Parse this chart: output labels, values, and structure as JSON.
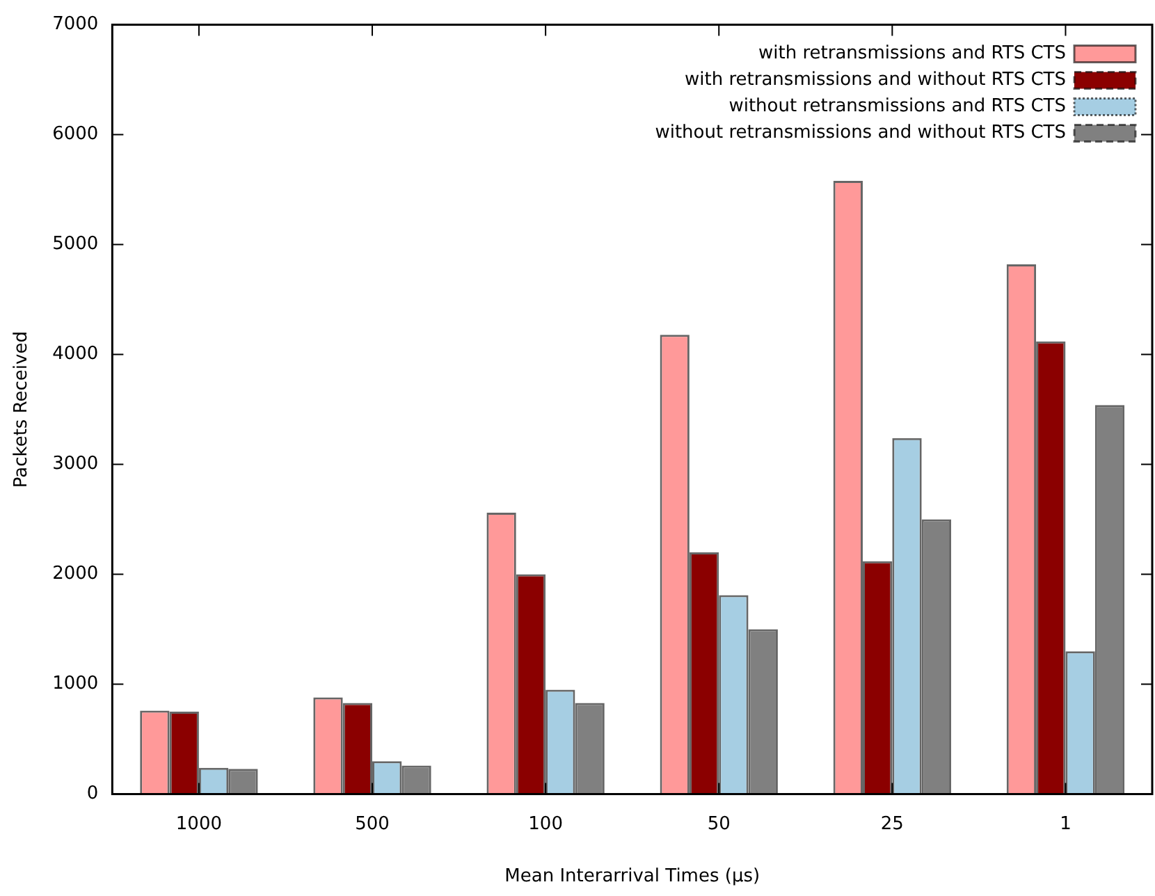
{
  "chart_data": {
    "type": "bar",
    "xlabel": "Mean Interarrival Times (µs)",
    "ylabel": "Packets Received",
    "categories": [
      "1000",
      "500",
      "100",
      "50",
      "25",
      "1"
    ],
    "series": [
      {
        "name": "with retransmissions and RTS CTS",
        "color": "#ff9999",
        "line_style": "solid",
        "values": [
          760,
          880,
          2560,
          4180,
          5580,
          4820
        ]
      },
      {
        "name": "with retransmissions and without RTS CTS",
        "color": "#8b0000",
        "line_style": "dashed",
        "values": [
          750,
          830,
          2000,
          2200,
          2120,
          4120
        ]
      },
      {
        "name": "without retransmissions and RTS CTS",
        "color": "#a6cee3",
        "line_style": "dotted",
        "values": [
          240,
          300,
          950,
          1810,
          3240,
          1300
        ]
      },
      {
        "name": "without retransmissions and without RTS CTS",
        "color": "#808080",
        "line_style": "dashed",
        "values": [
          230,
          260,
          830,
          1500,
          2500,
          3540
        ]
      }
    ],
    "ylim": [
      0,
      7000
    ],
    "yticks": [
      0,
      1000,
      2000,
      3000,
      4000,
      5000,
      6000,
      7000
    ],
    "grid": false,
    "legend": "top right"
  }
}
